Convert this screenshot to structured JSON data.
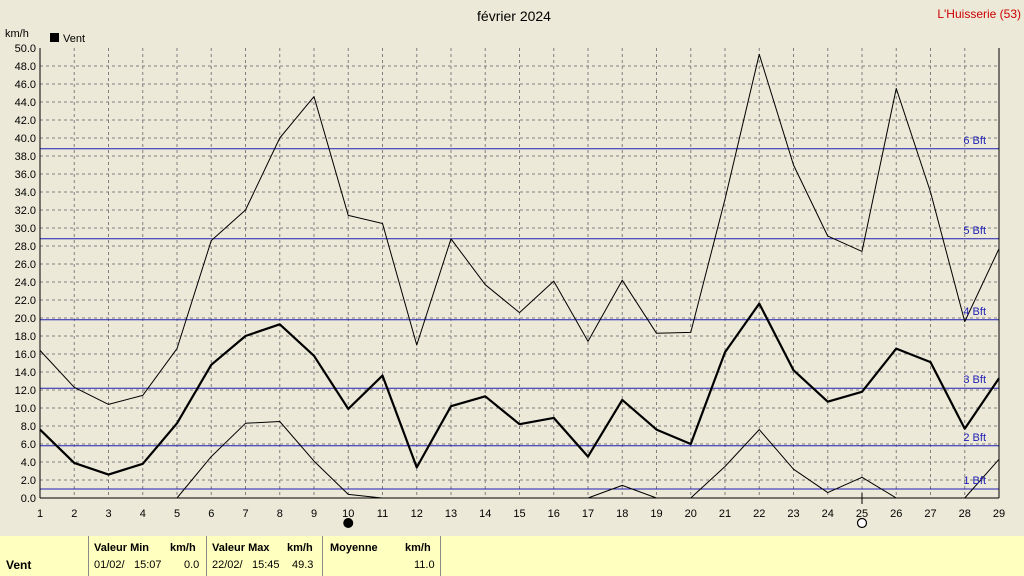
{
  "station": "L'Huisserie (53)",
  "colors": {
    "background": "#ece9d8",
    "grid": "#808080",
    "beaufort": "#1f1fb4",
    "series": "#000000",
    "footer": "#ffffc0",
    "station": "#cc0000"
  },
  "moon_phases": [
    {
      "day": 10,
      "phase": "new-moon"
    },
    {
      "day": 25,
      "phase": "full-moon"
    }
  ],
  "chart_data": {
    "type": "line",
    "title": "février 2024",
    "ylabel": "km/h",
    "legend": [
      "Vent"
    ],
    "grid": true,
    "ylim": [
      0,
      50
    ],
    "xlim": [
      1,
      29
    ],
    "x": [
      1,
      2,
      3,
      4,
      5,
      6,
      7,
      8,
      9,
      10,
      11,
      12,
      13,
      14,
      15,
      16,
      17,
      18,
      19,
      20,
      21,
      22,
      23,
      24,
      25,
      26,
      27,
      28,
      29
    ],
    "yticks": [
      "0.0",
      "2.0",
      "4.0",
      "6.0",
      "8.0",
      "10.0",
      "12.0",
      "14.0",
      "16.0",
      "18.0",
      "20.0",
      "22.0",
      "24.0",
      "26.0",
      "28.0",
      "30.0",
      "32.0",
      "34.0",
      "36.0",
      "38.0",
      "40.0",
      "42.0",
      "44.0",
      "46.0",
      "48.0",
      "50.0"
    ],
    "series": [
      {
        "name": "Vent",
        "role": "mean",
        "values": [
          7.6,
          3.9,
          2.6,
          3.8,
          8.3,
          14.8,
          18.0,
          19.3,
          15.8,
          9.9,
          13.6,
          3.4,
          10.2,
          11.3,
          8.2,
          8.9,
          4.6,
          10.9,
          7.6,
          6.0,
          16.2,
          21.6,
          14.2,
          10.7,
          11.8,
          16.6,
          15.1,
          7.7,
          13.3
        ]
      },
      {
        "role": "max",
        "values": [
          16.4,
          12.3,
          10.4,
          11.4,
          16.6,
          28.6,
          32.0,
          40.0,
          44.6,
          31.4,
          30.5,
          17.0,
          28.8,
          23.7,
          20.6,
          24.1,
          17.4,
          24.2,
          18.3,
          18.4,
          33.2,
          49.3,
          37.0,
          29.1,
          27.4,
          45.5,
          34.0,
          19.6,
          27.7
        ]
      },
      {
        "role": "min",
        "x": [
          5,
          6,
          7,
          8,
          9,
          10,
          11,
          17,
          18,
          19,
          20,
          21,
          22,
          23,
          24,
          25,
          26,
          28,
          29
        ],
        "values": [
          0.0,
          4.6,
          8.3,
          8.5,
          4.1,
          0.4,
          0.0,
          0.0,
          1.4,
          0.0,
          0.0,
          3.5,
          7.6,
          3.2,
          0.6,
          2.3,
          0.0,
          0.0,
          4.3
        ]
      }
    ],
    "beaufort": [
      {
        "label": "1 Bft",
        "value": 1.0
      },
      {
        "label": "2 Bft",
        "value": 5.8
      },
      {
        "label": "3 Bft",
        "value": 12.2
      },
      {
        "label": "4 Bft",
        "value": 19.8
      },
      {
        "label": "5 Bft",
        "value": 28.8
      },
      {
        "label": "6 Bft",
        "value": 38.8
      }
    ]
  },
  "summary": {
    "row_label": "Vent",
    "min": {
      "header": "Valeur Min",
      "unit": "km/h",
      "date": "01/02/",
      "time": "15:07",
      "value": "0.0"
    },
    "max": {
      "header": "Valeur Max",
      "unit": "km/h",
      "date": "22/02/",
      "time": "15:45",
      "value": "49.3"
    },
    "avg": {
      "header": "Moyenne",
      "unit": "km/h",
      "value": "11.0"
    }
  }
}
